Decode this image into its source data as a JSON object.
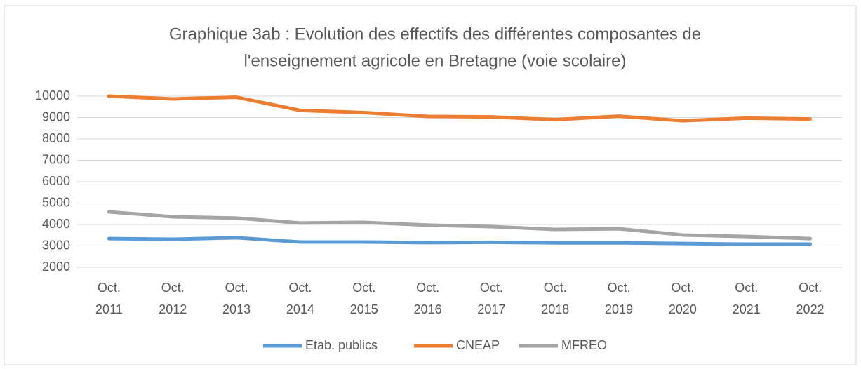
{
  "chart_data": {
    "type": "line",
    "title": [
      "Graphique 3ab : Evolution des effectifs des différentes composantes de",
      "l'enseignement agricole en Bretagne (voie scolaire)"
    ],
    "categories": [
      "Oct. 2011",
      "Oct. 2012",
      "Oct. 2013",
      "Oct. 2014",
      "Oct. 2015",
      "Oct. 2016",
      "Oct. 2017",
      "Oct. 2018",
      "Oct. 2019",
      "Oct. 2020",
      "Oct. 2021",
      "Oct. 2022"
    ],
    "series": [
      {
        "name": "Etab. publics",
        "color": "#5b9bd5",
        "values": [
          3340,
          3310,
          3380,
          3180,
          3180,
          3150,
          3170,
          3140,
          3140,
          3110,
          3080,
          3080
        ]
      },
      {
        "name": "CNEAP",
        "color": "#ed7d31",
        "values": [
          10000,
          9870,
          9950,
          9330,
          9230,
          9050,
          9030,
          8900,
          9060,
          8850,
          8970,
          8930
        ]
      },
      {
        "name": "MFREO",
        "color": "#a5a5a5",
        "values": [
          4590,
          4360,
          4300,
          4070,
          4100,
          3970,
          3900,
          3770,
          3800,
          3510,
          3440,
          3340
        ]
      }
    ],
    "ylim": [
      2000,
      10000
    ],
    "yticks": [
      2000,
      3000,
      4000,
      5000,
      6000,
      7000,
      8000,
      9000,
      10000
    ],
    "grid": true,
    "legend": "bottom"
  }
}
